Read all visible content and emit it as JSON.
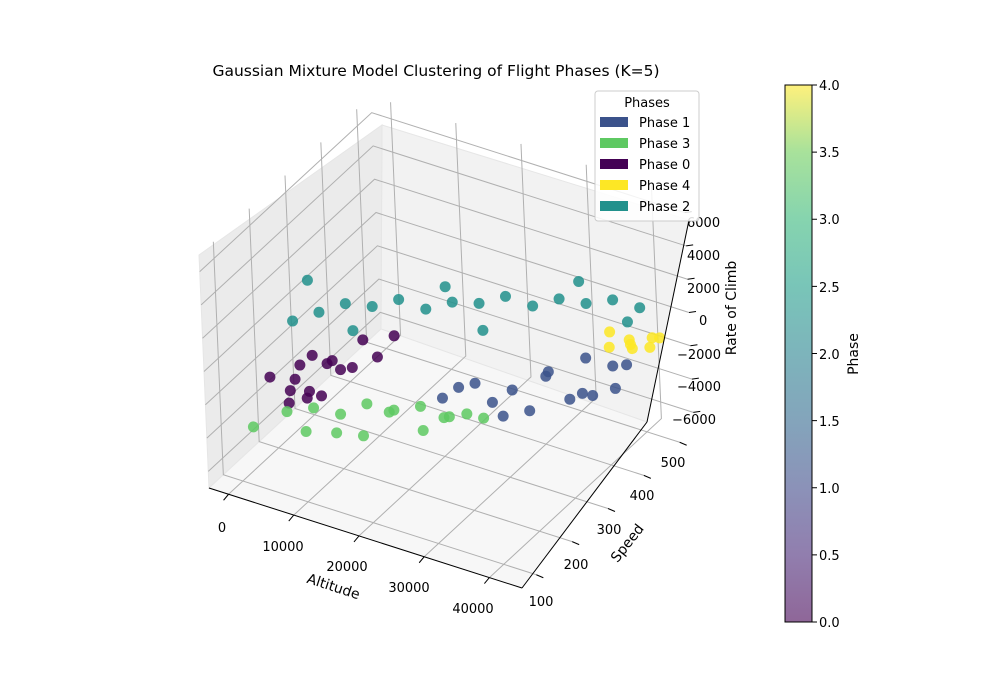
{
  "chart_data": {
    "type": "scatter",
    "projection": "3d",
    "title": "Gaussian Mixture Model Clustering of Flight Phases (K=5)",
    "xlabel": "Altitude",
    "ylabel": "Speed",
    "zlabel": "Rate of Climb",
    "xticks": [
      "0",
      "10000",
      "20000",
      "30000",
      "40000"
    ],
    "yticks": [
      "100",
      "200",
      "300",
      "400",
      "500"
    ],
    "zticks": [
      "−6000",
      "−4000",
      "−2000",
      "0",
      "2000",
      "4000",
      "6000"
    ],
    "xlim": [
      -3000,
      45000
    ],
    "ylim": [
      60,
      540
    ],
    "zlim": [
      -7000,
      7000
    ],
    "grid": true,
    "legend": {
      "title": "Phases",
      "placement": "top-right",
      "entries": [
        {
          "label": "Phase 1",
          "color": "#3b528b"
        },
        {
          "label": "Phase 3",
          "color": "#5ec962"
        },
        {
          "label": "Phase 0",
          "color": "#440154"
        },
        {
          "label": "Phase 4",
          "color": "#fde725"
        },
        {
          "label": "Phase 2",
          "color": "#21918c"
        }
      ]
    },
    "colorbar": {
      "label": "Phase",
      "ticks": [
        "0.0",
        "0.5",
        "1.0",
        "1.5",
        "2.0",
        "2.5",
        "3.0",
        "3.5",
        "4.0"
      ],
      "range": [
        0,
        4
      ],
      "colormap": "viridis",
      "alpha": 0.6
    },
    "series": [
      {
        "name": "Phase 0",
        "color": "#440154",
        "points": [
          [
            2000,
            150,
            -1500
          ],
          [
            3000,
            200,
            -2500
          ],
          [
            4000,
            220,
            -3500
          ],
          [
            5000,
            180,
            -1000
          ],
          [
            6000,
            250,
            -2000
          ],
          [
            7000,
            200,
            -3000
          ],
          [
            4500,
            160,
            -2200
          ],
          [
            8000,
            300,
            -1500
          ],
          [
            9000,
            320,
            -2800
          ],
          [
            3500,
            240,
            -1800
          ],
          [
            5500,
            280,
            -3200
          ],
          [
            6500,
            170,
            -2600
          ],
          [
            7500,
            210,
            -1200
          ],
          [
            2500,
            190,
            -3800
          ],
          [
            8500,
            260,
            -2300
          ],
          [
            10000,
            350,
            -2000
          ]
        ]
      },
      {
        "name": "Phase 3",
        "color": "#5ec962",
        "points": [
          [
            2000,
            100,
            -3500
          ],
          [
            5000,
            140,
            -3000
          ],
          [
            8000,
            160,
            -2800
          ],
          [
            11000,
            180,
            -3200
          ],
          [
            14000,
            200,
            -2600
          ],
          [
            17000,
            220,
            -3000
          ],
          [
            20000,
            240,
            -2800
          ],
          [
            23000,
            250,
            -3300
          ],
          [
            26000,
            260,
            -2900
          ],
          [
            28000,
            270,
            -3100
          ],
          [
            12000,
            150,
            -3600
          ],
          [
            18000,
            190,
            -2400
          ],
          [
            22000,
            210,
            -3400
          ],
          [
            25000,
            230,
            -2600
          ],
          [
            15000,
            170,
            -3800
          ],
          [
            9000,
            120,
            -3300
          ]
        ]
      },
      {
        "name": "Phase 1",
        "color": "#3b528b",
        "points": [
          [
            20000,
            300,
            -3500
          ],
          [
            24000,
            320,
            -2500
          ],
          [
            28000,
            350,
            -3000
          ],
          [
            32000,
            380,
            -2000
          ],
          [
            36000,
            400,
            -3200
          ],
          [
            40000,
            420,
            -2800
          ],
          [
            38000,
            450,
            -2300
          ],
          [
            34000,
            400,
            -3800
          ],
          [
            30000,
            360,
            -4200
          ],
          [
            26000,
            330,
            -3600
          ],
          [
            22000,
            310,
            -2800
          ],
          [
            35000,
            430,
            -1800
          ],
          [
            39000,
            470,
            -2500
          ],
          [
            31000,
            390,
            -2600
          ],
          [
            27000,
            340,
            -4500
          ],
          [
            37000,
            410,
            -3400
          ]
        ]
      },
      {
        "name": "Phase 4",
        "color": "#fde725",
        "points": [
          [
            37000,
            460,
            -1500
          ],
          [
            39000,
            480,
            -1200
          ],
          [
            41000,
            500,
            -1800
          ],
          [
            42000,
            490,
            -900
          ],
          [
            40000,
            470,
            -1400
          ],
          [
            38000,
            500,
            -2000
          ],
          [
            42000,
            510,
            -1300
          ],
          [
            36000,
            480,
            -1100
          ]
        ]
      },
      {
        "name": "Phase 2",
        "color": "#21918c",
        "points": [
          [
            3000,
            200,
            1000
          ],
          [
            6000,
            220,
            1500
          ],
          [
            9000,
            240,
            2000
          ],
          [
            12000,
            260,
            1800
          ],
          [
            15000,
            280,
            2200
          ],
          [
            18000,
            300,
            1600
          ],
          [
            21000,
            320,
            2000
          ],
          [
            24000,
            340,
            1900
          ],
          [
            27000,
            360,
            2300
          ],
          [
            30000,
            380,
            1700
          ],
          [
            33000,
            400,
            2100
          ],
          [
            36000,
            420,
            1800
          ],
          [
            39000,
            440,
            2000
          ],
          [
            42000,
            460,
            1500
          ],
          [
            5000,
            210,
            3500
          ],
          [
            20000,
            320,
            2800
          ],
          [
            35000,
            420,
            3000
          ],
          [
            10000,
            240,
            500
          ],
          [
            25000,
            330,
            600
          ],
          [
            40000,
            460,
            400
          ]
        ]
      }
    ]
  }
}
